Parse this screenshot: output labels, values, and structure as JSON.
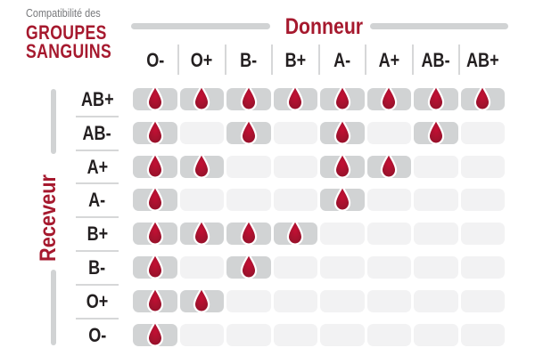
{
  "title": {
    "eyebrow": "Compatibilité des",
    "line1": "GROUPES",
    "line2": "SANGUINS"
  },
  "donor_axis_label": "Donneur",
  "receiver_axis_label": "Receveur",
  "icons": {
    "compatible_marker": "blood-drop-icon"
  },
  "colors": {
    "accent_red": "#a6192e",
    "drop_red_center": "#c30f33",
    "drop_red_edge": "#8c0f27",
    "cell_filled": "#d1d3d4",
    "cell_empty": "#f2f2f3",
    "text_dark": "#231f20",
    "text_gray": "#77787b",
    "rule_gray": "#d1d3d4"
  },
  "chart_data": {
    "type": "heatmap",
    "title": "Compatibilité des groupes sanguins",
    "xlabel": "Donneur",
    "ylabel": "Receveur",
    "columns": [
      "O-",
      "O+",
      "B-",
      "B+",
      "A-",
      "A+",
      "AB-",
      "AB+"
    ],
    "rows": [
      "AB+",
      "AB-",
      "A+",
      "A-",
      "B+",
      "B-",
      "O+",
      "O-"
    ],
    "values": [
      [
        1,
        1,
        1,
        1,
        1,
        1,
        1,
        1
      ],
      [
        1,
        0,
        1,
        0,
        1,
        0,
        1,
        0
      ],
      [
        1,
        1,
        0,
        0,
        1,
        1,
        0,
        0
      ],
      [
        1,
        0,
        0,
        0,
        1,
        0,
        0,
        0
      ],
      [
        1,
        1,
        1,
        1,
        0,
        0,
        0,
        0
      ],
      [
        1,
        0,
        1,
        0,
        0,
        0,
        0,
        0
      ],
      [
        1,
        1,
        0,
        0,
        0,
        0,
        0,
        0
      ],
      [
        1,
        0,
        0,
        0,
        0,
        0,
        0,
        0
      ]
    ],
    "marker_meaning": "drop = donor compatible with receiver",
    "grid": false,
    "legend": "none"
  }
}
